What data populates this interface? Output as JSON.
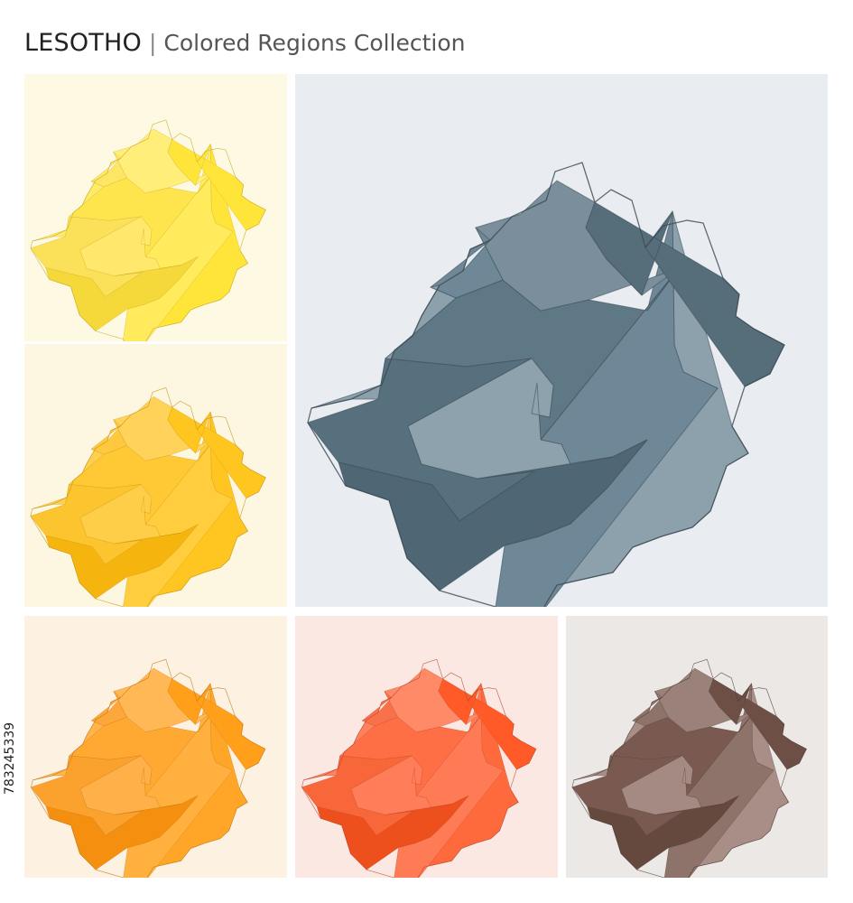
{
  "header": {
    "country": "LESOTHO",
    "separator": "|",
    "subtitle": "Colored Regions Collection"
  },
  "side_label": "783245339",
  "palettes": {
    "yellow": {
      "background": "#fdf9e3",
      "border": "#c9a61a",
      "regions": [
        "#ffe43a",
        "#ffeb5c",
        "#ffe54d",
        "#ffee7a",
        "#ffe43a",
        "#fde566",
        "#ffea6a",
        "#fbe15a",
        "#f5d83a",
        "#ffe86b"
      ]
    },
    "amber": {
      "background": "#fdf6e1",
      "border": "#c58f0a",
      "regions": [
        "#ffc520",
        "#ffcd3d",
        "#ffc935",
        "#ffd25a",
        "#ffc61f",
        "#fec83f",
        "#ffd04f",
        "#fcc42e",
        "#f5b50e",
        "#ffce49"
      ]
    },
    "orange": {
      "background": "#fdf1e1",
      "border": "#c2740c",
      "regions": [
        "#ffa628",
        "#ffb03e",
        "#ffa933",
        "#ffb855",
        "#ff9f1a",
        "#fda63a",
        "#ffb44c",
        "#fba12d",
        "#f58f10",
        "#ffb049"
      ]
    },
    "coral": {
      "background": "#fbe8e3",
      "border": "#b94121",
      "regions": [
        "#ff6a3d",
        "#ff7b55",
        "#ff6f45",
        "#ff8a67",
        "#ff5a28",
        "#f9714b",
        "#ff8160",
        "#f8673a",
        "#ed4f1d",
        "#ff7d59"
      ]
    },
    "steel": {
      "background": "#e9edf1",
      "border": "#3c4a54",
      "regions": [
        "#8da1ad",
        "#6f8897",
        "#5e7886",
        "#7a8f9b",
        "#566d7a",
        "#6f8897",
        "#8da1ad",
        "#56707e",
        "#4f6674",
        "#8ea2ae"
      ]
    },
    "brown": {
      "background": "#ebe8e6",
      "border": "#4a3a33",
      "regions": [
        "#a88e86",
        "#8e736a",
        "#7a5a50",
        "#9a817a",
        "#6e4f46",
        "#8e736a",
        "#a88e86",
        "#7a5a50",
        "#65493f",
        "#a48a82"
      ]
    }
  },
  "panels": [
    {
      "id": "panel-yellow",
      "palette": "yellow"
    },
    {
      "id": "panel-amber",
      "palette": "amber"
    },
    {
      "id": "panel-orange",
      "palette": "orange"
    },
    {
      "id": "panel-coral",
      "palette": "coral"
    },
    {
      "id": "panel-steel",
      "palette": "steel"
    },
    {
      "id": "panel-brown",
      "palette": "brown"
    }
  ]
}
